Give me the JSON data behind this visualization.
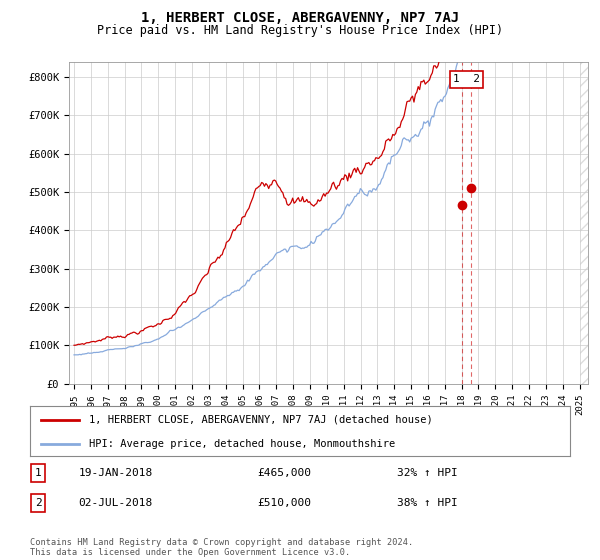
{
  "title": "1, HERBERT CLOSE, ABERGAVENNY, NP7 7AJ",
  "subtitle": "Price paid vs. HM Land Registry's House Price Index (HPI)",
  "ylabel_ticks": [
    "£0",
    "£100K",
    "£200K",
    "£300K",
    "£400K",
    "£500K",
    "£600K",
    "£700K",
    "£800K"
  ],
  "ytick_values": [
    0,
    100000,
    200000,
    300000,
    400000,
    500000,
    600000,
    700000,
    800000
  ],
  "ylim": [
    0,
    840000
  ],
  "xlim_start": 1994.7,
  "xlim_end": 2025.5,
  "red_line_color": "#cc0000",
  "blue_line_color": "#88aadd",
  "annotation_box_color": "#cc0000",
  "sale1_year": 2018.05,
  "sale1_price": 465000,
  "sale2_year": 2018.54,
  "sale2_price": 510000,
  "sale1_date": "19-JAN-2018",
  "sale1_price_str": "£465,000",
  "sale1_pct": "32% ↑ HPI",
  "sale2_date": "02-JUL-2018",
  "sale2_price_str": "£510,000",
  "sale2_pct": "38% ↑ HPI",
  "legend_line1": "1, HERBERT CLOSE, ABERGAVENNY, NP7 7AJ (detached house)",
  "legend_line2": "HPI: Average price, detached house, Monmouthshire",
  "footer": "Contains HM Land Registry data © Crown copyright and database right 2024.\nThis data is licensed under the Open Government Licence v3.0.",
  "background_color": "#ffffff",
  "grid_color": "#cccccc"
}
